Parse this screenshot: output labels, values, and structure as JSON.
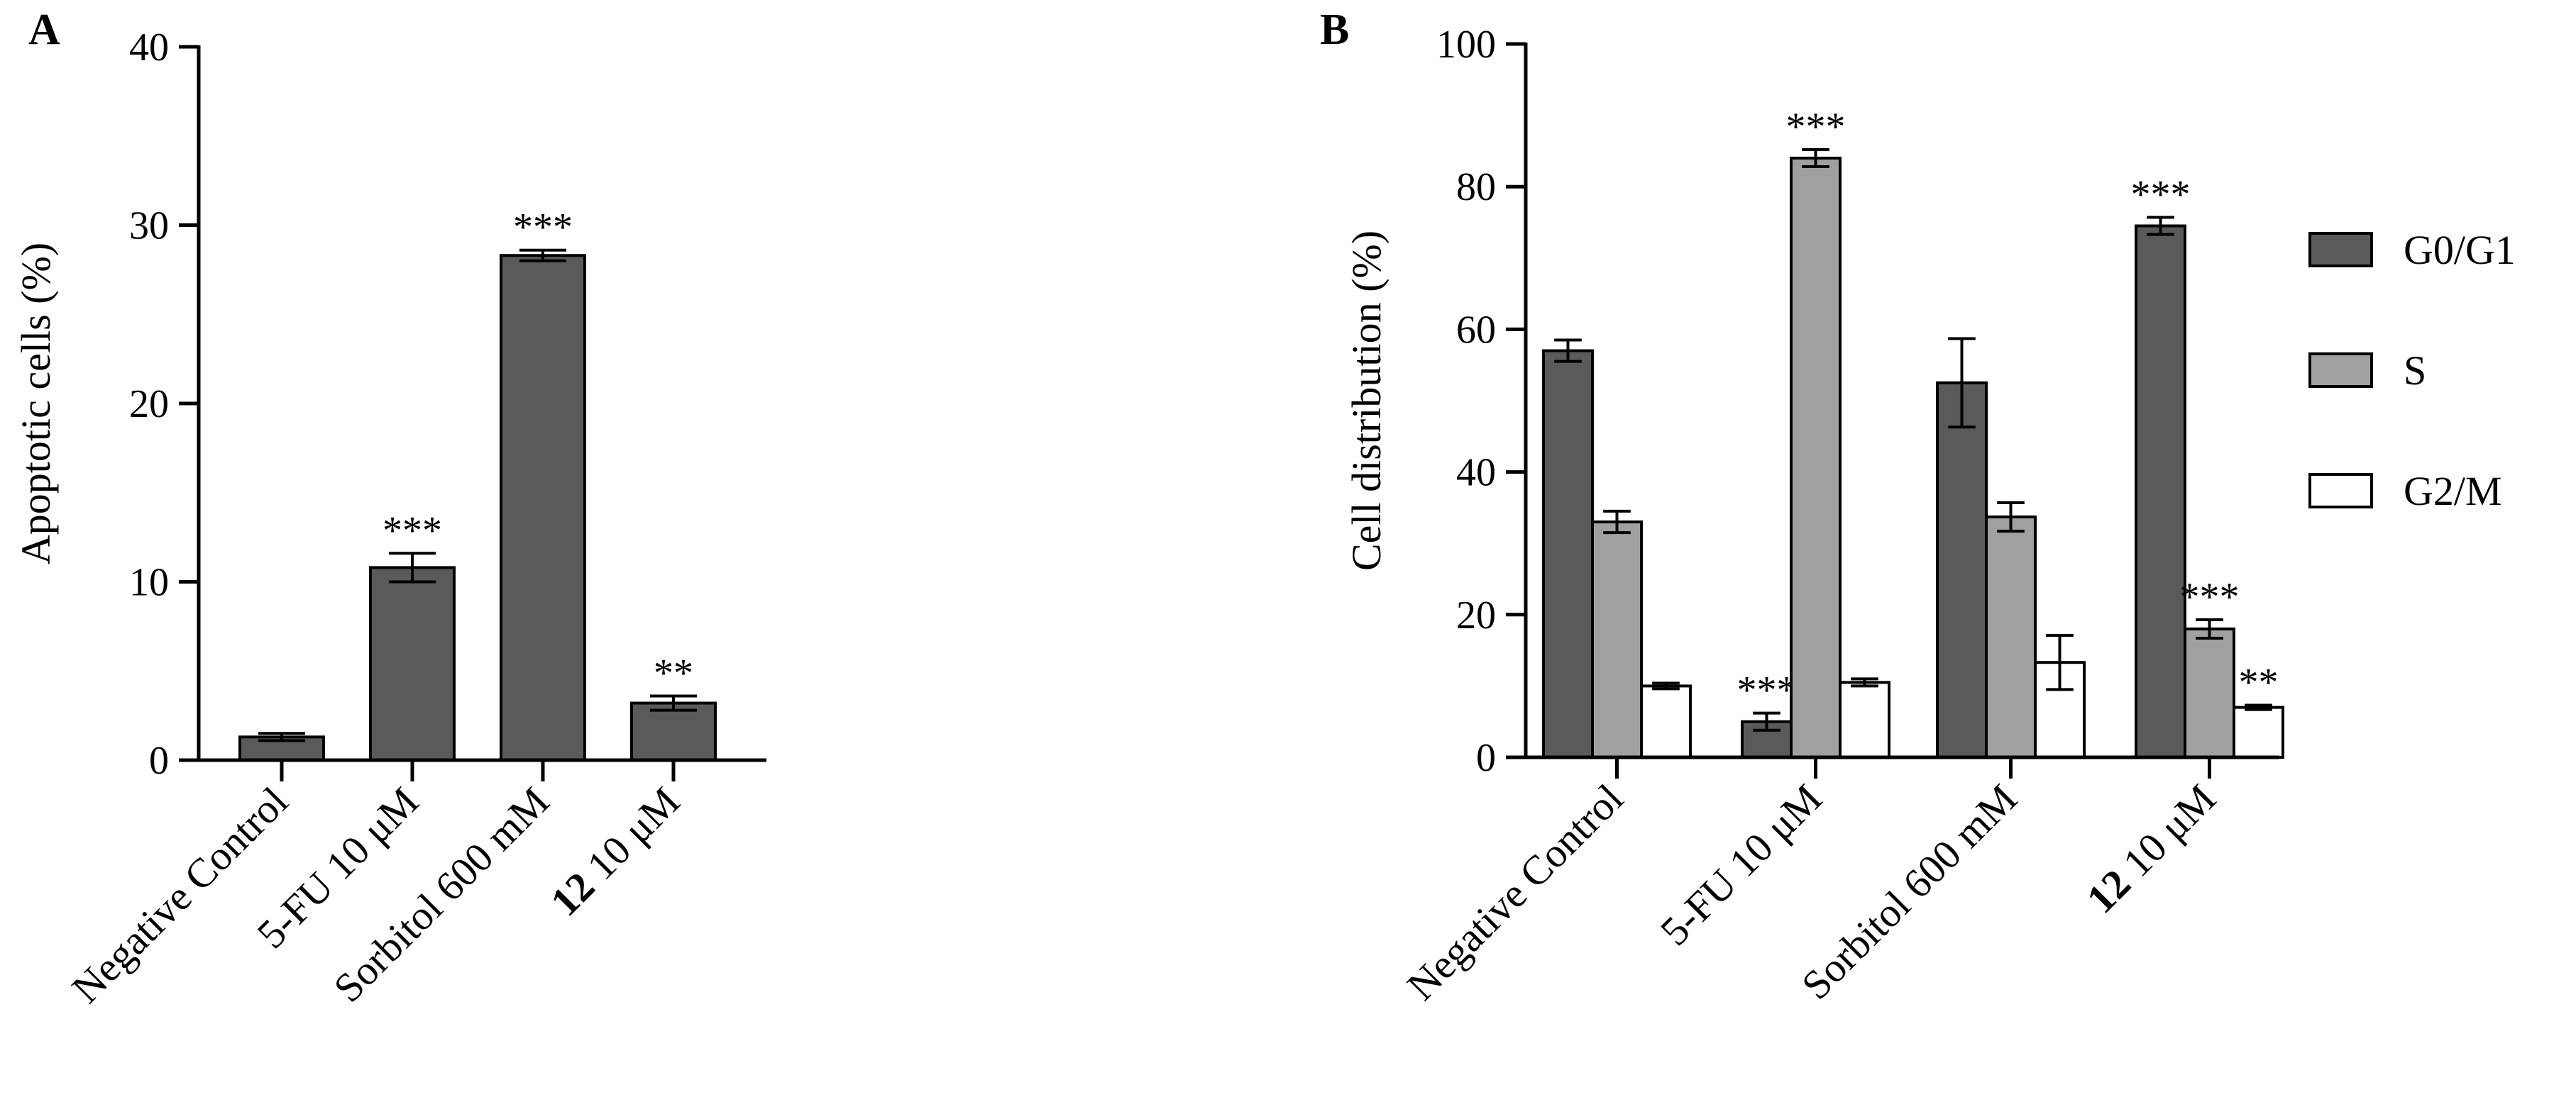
{
  "chart_data": [
    {
      "panel": "A",
      "type": "bar",
      "ylabel": "Apoptotic cells (%)",
      "ylim": [
        0,
        40
      ],
      "yticks": [
        0,
        10,
        20,
        30,
        40
      ],
      "categories": [
        {
          "bold": "",
          "text": "Negative Control"
        },
        {
          "bold": "",
          "text": "5-FU 10 μM"
        },
        {
          "bold": "",
          "text": "Sorbitol 600 mM"
        },
        {
          "bold": "12",
          "text": " 10 μM"
        }
      ],
      "series": [
        {
          "name": "Apoptotic cells",
          "color": "#5a5a5a",
          "values": [
            1.3,
            10.8,
            28.3,
            3.2
          ],
          "errors": [
            0.2,
            0.8,
            0.3,
            0.4
          ],
          "significance": [
            "",
            "***",
            "***",
            "**"
          ]
        }
      ]
    },
    {
      "panel": "B",
      "type": "bar",
      "ylabel": "Cell distribution (%)",
      "ylim": [
        0,
        100
      ],
      "yticks": [
        0,
        20,
        40,
        60,
        80,
        100
      ],
      "categories": [
        {
          "bold": "",
          "text": "Negative Control"
        },
        {
          "bold": "",
          "text": "5-FU 10 μM"
        },
        {
          "bold": "",
          "text": "Sorbitol 600 mM"
        },
        {
          "bold": "12",
          "text": " 10 μM"
        }
      ],
      "legend": "right",
      "series": [
        {
          "name": "G0/G1",
          "color": "#5a5a5a",
          "values": [
            57,
            5,
            52.5,
            74.5
          ],
          "errors": [
            1.5,
            1.2,
            6.2,
            1.2
          ],
          "significance": [
            "",
            "***",
            "",
            "***"
          ]
        },
        {
          "name": "S",
          "color": "#a0a0a2",
          "values": [
            33,
            84,
            33.7,
            18
          ],
          "errors": [
            1.5,
            1.2,
            2.0,
            1.3
          ],
          "significance": [
            "",
            "***",
            "",
            "***"
          ]
        },
        {
          "name": "G2/M",
          "color": "#ffffff",
          "values": [
            10,
            10.5,
            13.3,
            7
          ],
          "errors": [
            0.4,
            0.5,
            3.8,
            0.3
          ],
          "significance": [
            "",
            "",
            "",
            "**"
          ]
        }
      ]
    }
  ]
}
